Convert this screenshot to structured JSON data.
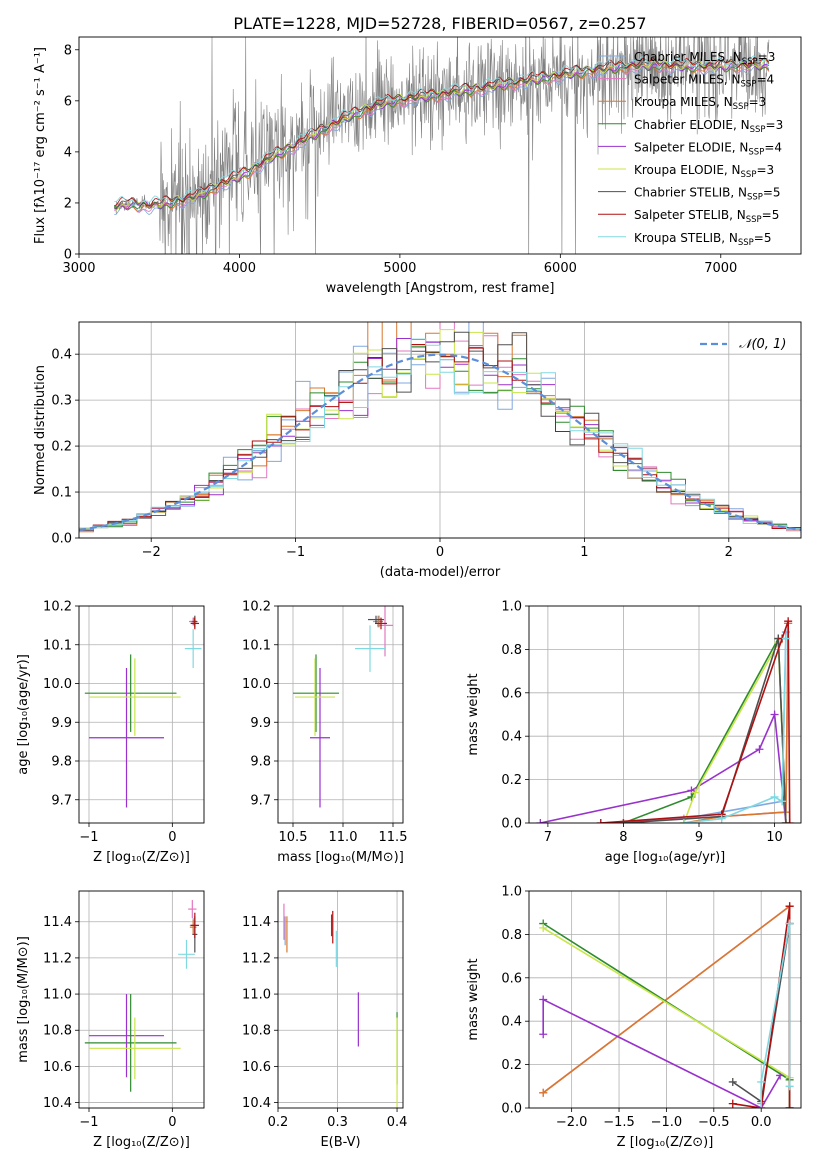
{
  "colors": {
    "chabrier_miles": "#7fa9e0",
    "salpeter_miles": "#e377c2",
    "kroupa_miles": "#d9782d",
    "chabrier_elodie": "#2e8b2e",
    "salpeter_elodie": "#9932cc",
    "kroupa_elodie": "#c8e64a",
    "chabrier_stelib": "#505050",
    "salpeter_stelib": "#b01010",
    "kroupa_stelib": "#80d8e0",
    "data": "#808080",
    "normal": "#5b8fd9"
  },
  "chart_data": [
    {
      "id": "spectrum",
      "type": "line",
      "title": "PLATE=1228, MJD=52728, FIBERID=0567, z=0.257",
      "xlabel": "wavelength [Angstrom, rest frame]",
      "ylabel": "Flux [fλ10⁻¹⁷ erg cm⁻² s⁻¹ A⁻¹]",
      "xlim": [
        3000,
        7500
      ],
      "ylim": [
        0,
        8.5
      ],
      "xticks": [
        "3000",
        "4000",
        "5000",
        "6000",
        "7000"
      ],
      "yticks": [
        "0",
        "2",
        "4",
        "6",
        "8"
      ],
      "grid": false,
      "legend_position": "top-right",
      "continuum": [
        [
          3220,
          1.85
        ],
        [
          3300,
          1.95
        ],
        [
          3450,
          1.9
        ],
        [
          3600,
          2.05
        ],
        [
          3750,
          2.3
        ],
        [
          3900,
          2.8
        ],
        [
          3950,
          2.9
        ],
        [
          4050,
          3.2
        ],
        [
          4200,
          3.8
        ],
        [
          4300,
          4.1
        ],
        [
          4500,
          4.8
        ],
        [
          4650,
          5.3
        ],
        [
          4800,
          5.7
        ],
        [
          4900,
          5.9
        ],
        [
          5000,
          6.05
        ],
        [
          5200,
          6.2
        ],
        [
          5400,
          6.4
        ],
        [
          5600,
          6.6
        ],
        [
          5800,
          6.8
        ],
        [
          6000,
          7.0
        ],
        [
          6200,
          7.2
        ],
        [
          6400,
          7.35
        ],
        [
          6600,
          7.4
        ],
        [
          6800,
          7.35
        ],
        [
          7000,
          7.35
        ],
        [
          7200,
          7.4
        ],
        [
          7300,
          7.4
        ]
      ],
      "series": [
        {
          "name": "Chabrier MILES, N_SSP=3",
          "color_key": "chabrier_miles"
        },
        {
          "name": "Salpeter MILES, N_SSP=4",
          "color_key": "salpeter_miles"
        },
        {
          "name": "Kroupa MILES, N_SSP=3",
          "color_key": "kroupa_miles"
        },
        {
          "name": "Chabrier ELODIE, N_SSP=3",
          "color_key": "chabrier_elodie"
        },
        {
          "name": "Salpeter ELODIE, N_SSP=4",
          "color_key": "salpeter_elodie"
        },
        {
          "name": "Kroupa ELODIE, N_SSP=3",
          "color_key": "kroupa_elodie"
        },
        {
          "name": "Chabrier STELIB, N_SSP=5",
          "color_key": "chabrier_stelib"
        },
        {
          "name": "Salpeter STELIB, N_SSP=5",
          "color_key": "salpeter_stelib"
        },
        {
          "name": "Kroupa STELIB, N_SSP=5",
          "color_key": "kroupa_stelib"
        }
      ]
    },
    {
      "id": "residuals",
      "type": "line",
      "xlabel": "(data-model)/error",
      "ylabel": "Normed distribution",
      "xlim": [
        -2.5,
        2.5
      ],
      "ylim": [
        0,
        0.47
      ],
      "xticks": [
        "−2",
        "−1",
        "0",
        "1",
        "2"
      ],
      "yticks": [
        "0.0",
        "0.1",
        "0.2",
        "0.3",
        "0.4"
      ],
      "grid": true,
      "legend_position": "top-right",
      "legend_label": "𝒩(0, 1)",
      "curve": "normal pdf, mean 0, sigma 1",
      "bin_width": 0.1
    },
    {
      "id": "age_vs_Z",
      "type": "scatter",
      "xlabel": "Z [log₁₀(Z/Z⊙)]",
      "ylabel": "age  [log₁₀(age/yr)]",
      "xlim": [
        -1.12,
        0.38
      ],
      "ylim": [
        9.64,
        10.2
      ],
      "xticks": [
        "−1",
        "0"
      ],
      "yticks": [
        "9.7",
        "9.8",
        "9.9",
        "10.0",
        "10.1",
        "10.2"
      ],
      "grid": true,
      "points": [
        {
          "c": "chabrier_miles",
          "x": 0.25,
          "y": 10.16,
          "xe": 0.04,
          "ye": 0.01
        },
        {
          "c": "salpeter_miles",
          "x": 0.25,
          "y": 10.16,
          "xe": 0.05,
          "ye": 0.01
        },
        {
          "c": "kroupa_miles",
          "x": 0.26,
          "y": 10.16,
          "xe": 0.04,
          "ye": 0.01
        },
        {
          "c": "chabrier_elodie",
          "x": -0.5,
          "y": 9.975,
          "xe": 0.55,
          "ye": 0.1
        },
        {
          "c": "salpeter_elodie",
          "x": -0.55,
          "y": 9.86,
          "xe": 0.45,
          "ye": 0.18
        },
        {
          "c": "kroupa_elodie",
          "x": -0.45,
          "y": 9.965,
          "xe": 0.55,
          "ye": 0.1
        },
        {
          "c": "chabrier_stelib",
          "x": 0.27,
          "y": 10.16,
          "xe": 0.03,
          "ye": 0.015
        },
        {
          "c": "salpeter_stelib",
          "x": 0.27,
          "y": 10.155,
          "xe": 0.05,
          "ye": 0.015
        },
        {
          "c": "kroupa_stelib",
          "x": 0.25,
          "y": 10.09,
          "xe": 0.1,
          "ye": 0.05
        }
      ]
    },
    {
      "id": "age_vs_mass",
      "type": "scatter",
      "xlabel": "mass [log₁₀(M/M⊙)]",
      "ylabel": "",
      "xlim": [
        10.35,
        11.6
      ],
      "ylim": [
        9.64,
        10.2
      ],
      "xticks": [
        "10.5",
        "11.0",
        "11.5"
      ],
      "yticks": [
        "9.7",
        "9.8",
        "9.9",
        "10.0",
        "10.1",
        "10.2"
      ],
      "grid": true,
      "points": [
        {
          "c": "chabrier_miles",
          "x": 11.35,
          "y": 10.16,
          "xe": 0.05,
          "ye": 0.015
        },
        {
          "c": "salpeter_miles",
          "x": 11.42,
          "y": 10.15,
          "xe": 0.08,
          "ye": 0.08
        },
        {
          "c": "kroupa_miles",
          "x": 11.36,
          "y": 10.16,
          "xe": 0.04,
          "ye": 0.015
        },
        {
          "c": "chabrier_elodie",
          "x": 10.73,
          "y": 9.975,
          "xe": 0.23,
          "ye": 0.1
        },
        {
          "c": "salpeter_elodie",
          "x": 10.77,
          "y": 9.86,
          "xe": 0.1,
          "ye": 0.18
        },
        {
          "c": "kroupa_elodie",
          "x": 10.72,
          "y": 9.965,
          "xe": 0.2,
          "ye": 0.1
        },
        {
          "c": "chabrier_stelib",
          "x": 11.33,
          "y": 10.165,
          "xe": 0.08,
          "ye": 0.01
        },
        {
          "c": "salpeter_stelib",
          "x": 11.38,
          "y": 10.155,
          "xe": 0.06,
          "ye": 0.015
        },
        {
          "c": "kroupa_stelib",
          "x": 11.27,
          "y": 10.09,
          "xe": 0.15,
          "ye": 0.06
        }
      ]
    },
    {
      "id": "mass_weight_vs_age",
      "type": "line",
      "xlabel": "age  [log₁₀(age/yr)]",
      "ylabel": "mass weight",
      "xlim": [
        6.75,
        10.35
      ],
      "ylim": [
        0,
        1.0
      ],
      "xticks": [
        "7",
        "8",
        "9",
        "10"
      ],
      "yticks": [
        "0.0",
        "0.2",
        "0.4",
        "0.6",
        "0.8",
        "1.0"
      ],
      "grid": true,
      "series": [
        {
          "c": "chabrier_miles",
          "x": [
            8.8,
            10.1,
            10.15
          ],
          "y": [
            0.02,
            0.1,
            0.88
          ]
        },
        {
          "c": "salpeter_miles",
          "x": [
            7.7,
            9.3,
            10.15,
            10.18
          ],
          "y": [
            0.0,
            0.03,
            0.05,
            0.92
          ]
        },
        {
          "c": "kroupa_miles",
          "x": [
            8.8,
            9.3,
            10.15,
            10.18
          ],
          "y": [
            0.0,
            0.03,
            0.05,
            0.92
          ]
        },
        {
          "c": "chabrier_elodie",
          "x": [
            8.0,
            8.9,
            10.05,
            10.15
          ],
          "y": [
            0.0,
            0.12,
            0.85,
            0.0
          ]
        },
        {
          "c": "salpeter_elodie",
          "x": [
            6.9,
            8.9,
            9.8,
            10.0,
            10.15
          ],
          "y": [
            0.0,
            0.15,
            0.34,
            0.5,
            0.0
          ]
        },
        {
          "c": "kroupa_elodie",
          "x": [
            8.8,
            8.95,
            10.05,
            10.15
          ],
          "y": [
            0.0,
            0.14,
            0.83,
            0.0
          ]
        },
        {
          "c": "chabrier_stelib",
          "x": [
            8.0,
            9.3,
            10.05,
            10.15
          ],
          "y": [
            0.0,
            0.03,
            0.85,
            0.0
          ]
        },
        {
          "c": "salpeter_stelib",
          "x": [
            7.7,
            9.3,
            10.1,
            10.18,
            10.2
          ],
          "y": [
            0.0,
            0.04,
            0.85,
            0.93,
            0.0
          ]
        },
        {
          "c": "kroupa_stelib",
          "x": [
            8.8,
            9.3,
            10.0,
            10.1,
            10.15
          ],
          "y": [
            0.0,
            0.02,
            0.12,
            0.1,
            0.85
          ]
        }
      ]
    },
    {
      "id": "mass_vs_Z",
      "type": "scatter",
      "xlabel": "Z [log₁₀(Z/Z⊙)]",
      "ylabel": "mass [log₁₀(M/M⊙)]",
      "xlim": [
        -1.12,
        0.38
      ],
      "ylim": [
        10.37,
        11.57
      ],
      "xticks": [
        "−1",
        "0"
      ],
      "yticks": [
        "10.4",
        "10.6",
        "10.8",
        "11.0",
        "11.2",
        "11.4"
      ],
      "grid": true,
      "points": [
        {
          "c": "chabrier_miles",
          "x": 0.25,
          "y": 11.38,
          "xe": 0.04,
          "ye": 0.04
        },
        {
          "c": "salpeter_miles",
          "x": 0.24,
          "y": 11.47,
          "xe": 0.05,
          "ye": 0.05
        },
        {
          "c": "kroupa_miles",
          "x": 0.25,
          "y": 11.37,
          "xe": 0.04,
          "ye": 0.04
        },
        {
          "c": "chabrier_elodie",
          "x": -0.5,
          "y": 10.73,
          "xe": 0.55,
          "ye": 0.27
        },
        {
          "c": "salpeter_elodie",
          "x": -0.55,
          "y": 10.77,
          "xe": 0.45,
          "ye": 0.23
        },
        {
          "c": "kroupa_elodie",
          "x": -0.45,
          "y": 10.7,
          "xe": 0.55,
          "ye": 0.17
        },
        {
          "c": "chabrier_stelib",
          "x": 0.27,
          "y": 11.33,
          "xe": 0.03,
          "ye": 0.1
        },
        {
          "c": "salpeter_stelib",
          "x": 0.27,
          "y": 11.38,
          "xe": 0.05,
          "ye": 0.07
        },
        {
          "c": "kroupa_stelib",
          "x": 0.17,
          "y": 11.22,
          "xe": 0.1,
          "ye": 0.08
        }
      ]
    },
    {
      "id": "mass_vs_ebv",
      "type": "scatter",
      "xlabel": "E(B-V)",
      "ylabel": "",
      "xlim": [
        0.2,
        0.41
      ],
      "ylim": [
        10.37,
        11.57
      ],
      "xticks": [
        "0.2",
        "0.3",
        "0.4"
      ],
      "yticks": [
        "10.4",
        "10.6",
        "10.8",
        "11.0",
        "11.2",
        "11.4"
      ],
      "grid": true,
      "points": [
        {
          "c": "chabrier_miles",
          "x": 0.212,
          "y": 11.35,
          "xe": 0,
          "ye": 0.08
        },
        {
          "c": "salpeter_miles",
          "x": 0.21,
          "y": 11.4,
          "xe": 0,
          "ye": 0.1
        },
        {
          "c": "kroupa_miles",
          "x": 0.215,
          "y": 11.33,
          "xe": 0,
          "ye": 0.1
        },
        {
          "c": "chabrier_elodie",
          "x": 0.4,
          "y": 10.7,
          "xe": 0,
          "ye": 0.2
        },
        {
          "c": "salpeter_elodie",
          "x": 0.335,
          "y": 10.86,
          "xe": 0,
          "ye": 0.15
        },
        {
          "c": "kroupa_elodie",
          "x": 0.4,
          "y": 10.6,
          "xe": 0,
          "ye": 0.27
        },
        {
          "c": "chabrier_stelib",
          "x": 0.29,
          "y": 11.38,
          "xe": 0,
          "ye": 0.06
        },
        {
          "c": "salpeter_stelib",
          "x": 0.292,
          "y": 11.37,
          "xe": 0,
          "ye": 0.09
        },
        {
          "c": "kroupa_stelib",
          "x": 0.298,
          "y": 11.25,
          "xe": 0,
          "ye": 0.1
        }
      ]
    },
    {
      "id": "mass_weight_vs_Z",
      "type": "line",
      "xlabel": "Z [log₁₀(Z/Z⊙)]",
      "ylabel": "mass weight",
      "xlim": [
        -2.45,
        0.42
      ],
      "ylim": [
        0,
        1.0
      ],
      "xticks": [
        "−2.0",
        "−1.5",
        "−1.0",
        "−0.5",
        "0.0"
      ],
      "yticks": [
        "0.0",
        "0.2",
        "0.4",
        "0.6",
        "0.8",
        "1.0"
      ],
      "grid": true,
      "series": [
        {
          "c": "chabrier_miles",
          "x": [
            0.0,
            0.3
          ],
          "y": [
            0.02,
            0.85
          ]
        },
        {
          "c": "salpeter_miles",
          "x": [
            -2.3,
            0.3,
            0.3
          ],
          "y": [
            0.07,
            0.93,
            0.0
          ]
        },
        {
          "c": "kroupa_miles",
          "x": [
            -2.3,
            0.3,
            0.3
          ],
          "y": [
            0.07,
            0.93,
            0.0
          ]
        },
        {
          "c": "chabrier_elodie",
          "x": [
            -2.3,
            0.3,
            0.3
          ],
          "y": [
            0.85,
            0.13,
            0.0
          ]
        },
        {
          "c": "salpeter_elodie",
          "x": [
            -2.3,
            -2.3,
            0.0,
            0.2
          ],
          "y": [
            0.34,
            0.5,
            0.0,
            0.15
          ]
        },
        {
          "c": "kroupa_elodie",
          "x": [
            -2.3,
            0.3,
            0.3
          ],
          "y": [
            0.83,
            0.14,
            0.0
          ]
        },
        {
          "c": "chabrier_stelib",
          "x": [
            -0.3,
            0.0,
            0.3,
            0.3
          ],
          "y": [
            0.12,
            0.03,
            0.85,
            0.0
          ]
        },
        {
          "c": "salpeter_stelib",
          "x": [
            -0.3,
            0.0,
            0.3,
            0.3
          ],
          "y": [
            0.02,
            0.0,
            0.93,
            0.0
          ]
        },
        {
          "c": "kroupa_stelib",
          "x": [
            0.0,
            0.0,
            0.3,
            0.3
          ],
          "y": [
            0.0,
            0.12,
            0.85,
            0.1
          ]
        }
      ]
    }
  ]
}
